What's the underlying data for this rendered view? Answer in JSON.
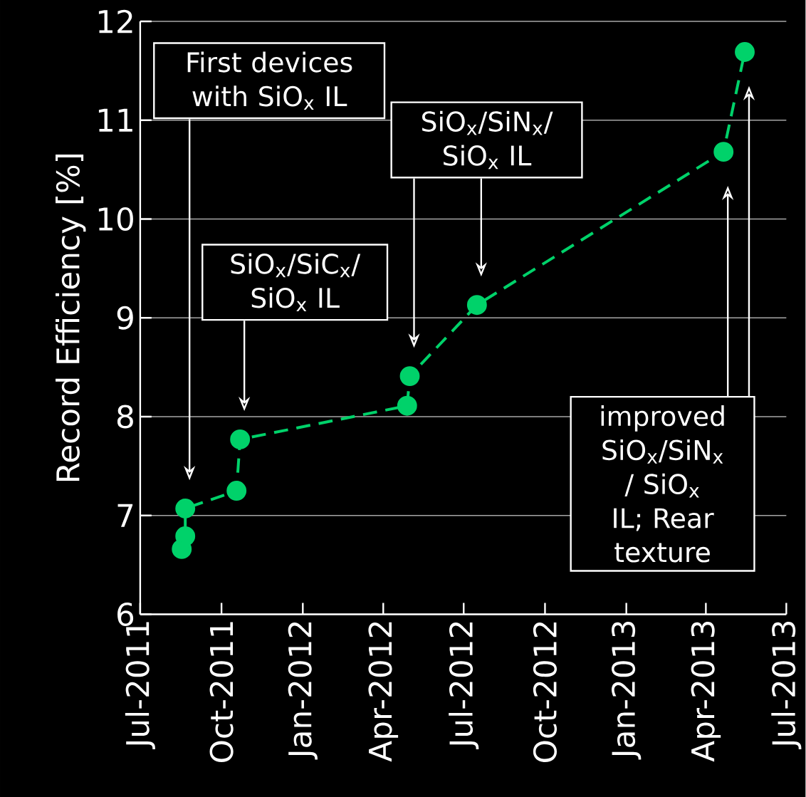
{
  "chart_data": {
    "type": "line",
    "ylabel": "Record Efficiency [%]",
    "x": [
      "2011-08-17",
      "2011-08-21",
      "2011-08-21",
      "2011-10-18",
      "2011-10-22",
      "2012-04-28",
      "2012-05-01",
      "2012-07-16",
      "2013-04-21",
      "2013-05-15"
    ],
    "values": [
      6.66,
      6.79,
      7.07,
      7.25,
      7.77,
      8.11,
      8.41,
      9.13,
      10.68,
      11.69
    ],
    "color": "#00d26a",
    "marker": "circle",
    "line_style": "dashed",
    "xlim": [
      "2011-07-01",
      "2013-07-01"
    ],
    "xticks": [
      {
        "value": "2011-07-01",
        "label": "Jul-2011"
      },
      {
        "value": "2011-10-01",
        "label": "Oct-2011"
      },
      {
        "value": "2012-01-01",
        "label": "Jan-2012"
      },
      {
        "value": "2012-04-01",
        "label": "Apr-2012"
      },
      {
        "value": "2012-07-01",
        "label": "Jul-2012"
      },
      {
        "value": "2012-10-01",
        "label": "Oct-2012"
      },
      {
        "value": "2013-01-01",
        "label": "Jan-2013"
      },
      {
        "value": "2013-04-01",
        "label": "Apr-2013"
      },
      {
        "value": "2013-07-01",
        "label": "Jul-2013"
      }
    ],
    "ylim": [
      6,
      12
    ],
    "yticks": [
      6,
      7,
      8,
      9,
      10,
      11,
      12
    ],
    "grid": "y",
    "annotations": [
      "First devices with SiO$_{x}$ IL",
      "SiO$_{x}$/SiC$_{x}$/ SiO$_{x}$ IL",
      "SiO$_{x}$/SiN$_{x}$/ SiO$_{x}$ IL",
      "improved SiO$_{x}$/SiN$_{x}$ / SiO$_{x}$ IL; Rear texture"
    ]
  }
}
